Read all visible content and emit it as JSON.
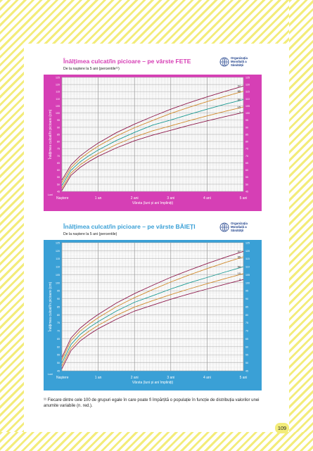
{
  "footnote": "¹¹ Fiecare dintre cele 100 de grupuri egale în care poate fi împărțită o populație în funcție de distribuția valorilor unei anumite variabile (n. red.).",
  "page_number": "109",
  "who_label": "Organizația Mondială a Sănătății",
  "chart_data": [
    {
      "type": "line",
      "title": "Înălțimea culcat/în picioare – pe vârste FETE",
      "subtitle": "De la naștere la 5 ani (percentile¹¹)",
      "xlabel": "Vârsta (luni și ani împliniți)",
      "ylabel": "Înălțimea culcat/în picioare (cm)",
      "unit_label": "Luni",
      "x_tick_labels": [
        "Naștere",
        "1 an",
        "2 ani",
        "3 ani",
        "4 ani",
        "5 ani"
      ],
      "xlim": [
        0,
        60
      ],
      "ylim": [
        45,
        125
      ],
      "y_ticks": [
        45,
        50,
        55,
        60,
        65,
        70,
        75,
        80,
        85,
        90,
        95,
        100,
        105,
        110,
        115,
        120,
        125
      ],
      "theme_color": "#d63fb5",
      "x": [
        0,
        3,
        6,
        9,
        12,
        18,
        24,
        30,
        36,
        42,
        48,
        54,
        60
      ],
      "series": [
        {
          "name": "97",
          "color": "#8e1a4c",
          "values": [
            52.9,
            63.5,
            69.8,
            74.6,
            78.9,
            86.2,
            92.2,
            97.6,
            102.7,
            107.2,
            111.3,
            115.2,
            118.9
          ]
        },
        {
          "name": "85",
          "color": "#d08a2c",
          "values": [
            51.1,
            61.6,
            67.8,
            72.6,
            76.8,
            83.8,
            89.7,
            94.8,
            99.7,
            104.0,
            108.0,
            111.7,
            115.2
          ]
        },
        {
          "name": "50",
          "color": "#1a9a93",
          "values": [
            49.1,
            59.8,
            65.7,
            70.1,
            74.0,
            80.7,
            86.4,
            91.5,
            95.1,
            99.0,
            102.7,
            106.2,
            109.4
          ]
        },
        {
          "name": "15",
          "color": "#d08a2c",
          "values": [
            47.2,
            57.8,
            63.6,
            67.9,
            71.6,
            77.9,
            83.2,
            87.5,
            91.0,
            94.6,
            98.0,
            101.2,
            104.2
          ]
        },
        {
          "name": "3",
          "color": "#8e1a4c",
          "values": [
            45.6,
            56.2,
            61.8,
            66.0,
            69.6,
            75.5,
            80.5,
            84.5,
            87.9,
            91.3,
            94.5,
            97.5,
            100.4
          ]
        }
      ]
    },
    {
      "type": "line",
      "title": "Înălțimea culcat/în picioare – pe vârste BĂIEȚI",
      "subtitle": "De la naștere la 5 ani (percentile)",
      "xlabel": "Vârsta (luni și ani împliniți)",
      "ylabel": "Înălțimea culcat/în picioare (cm)",
      "unit_label": "Luni",
      "x_tick_labels": [
        "Naștere",
        "1 an",
        "2 ani",
        "3 ani",
        "4 ani",
        "5 ani"
      ],
      "xlim": [
        0,
        60
      ],
      "ylim": [
        45,
        125
      ],
      "y_ticks": [
        45,
        50,
        55,
        60,
        65,
        70,
        75,
        80,
        85,
        90,
        95,
        100,
        105,
        110,
        115,
        120,
        125
      ],
      "theme_color": "#3aa0d6",
      "x": [
        0,
        3,
        6,
        9,
        12,
        18,
        24,
        30,
        36,
        42,
        48,
        54,
        60
      ],
      "series": [
        {
          "name": "97",
          "color": "#8e1a4c",
          "values": [
            53.4,
            65.5,
            71.6,
            76.2,
            80.2,
            87.3,
            93.2,
            98.4,
            103.4,
            107.8,
            112.0,
            115.9,
            119.6
          ]
        },
        {
          "name": "85",
          "color": "#d08a2c",
          "values": [
            51.8,
            63.7,
            69.8,
            74.2,
            78.2,
            85.0,
            90.7,
            95.7,
            100.5,
            104.8,
            108.8,
            112.6,
            116.2
          ]
        },
        {
          "name": "50",
          "color": "#1a9a93",
          "values": [
            49.9,
            61.4,
            67.6,
            72.0,
            75.7,
            82.3,
            87.8,
            91.9,
            96.1,
            99.9,
            103.3,
            106.7,
            110.0
          ]
        },
        {
          "name": "15",
          "color": "#d08a2c",
          "values": [
            48.0,
            59.3,
            65.5,
            69.8,
            73.4,
            79.6,
            84.8,
            88.8,
            92.6,
            96.1,
            99.4,
            102.6,
            105.7
          ]
        },
        {
          "name": "3",
          "color": "#8e1a4c",
          "values": [
            46.3,
            57.6,
            63.6,
            67.7,
            71.3,
            77.2,
            82.3,
            86.0,
            89.7,
            93.0,
            96.1,
            99.1,
            102.0
          ]
        }
      ]
    }
  ]
}
